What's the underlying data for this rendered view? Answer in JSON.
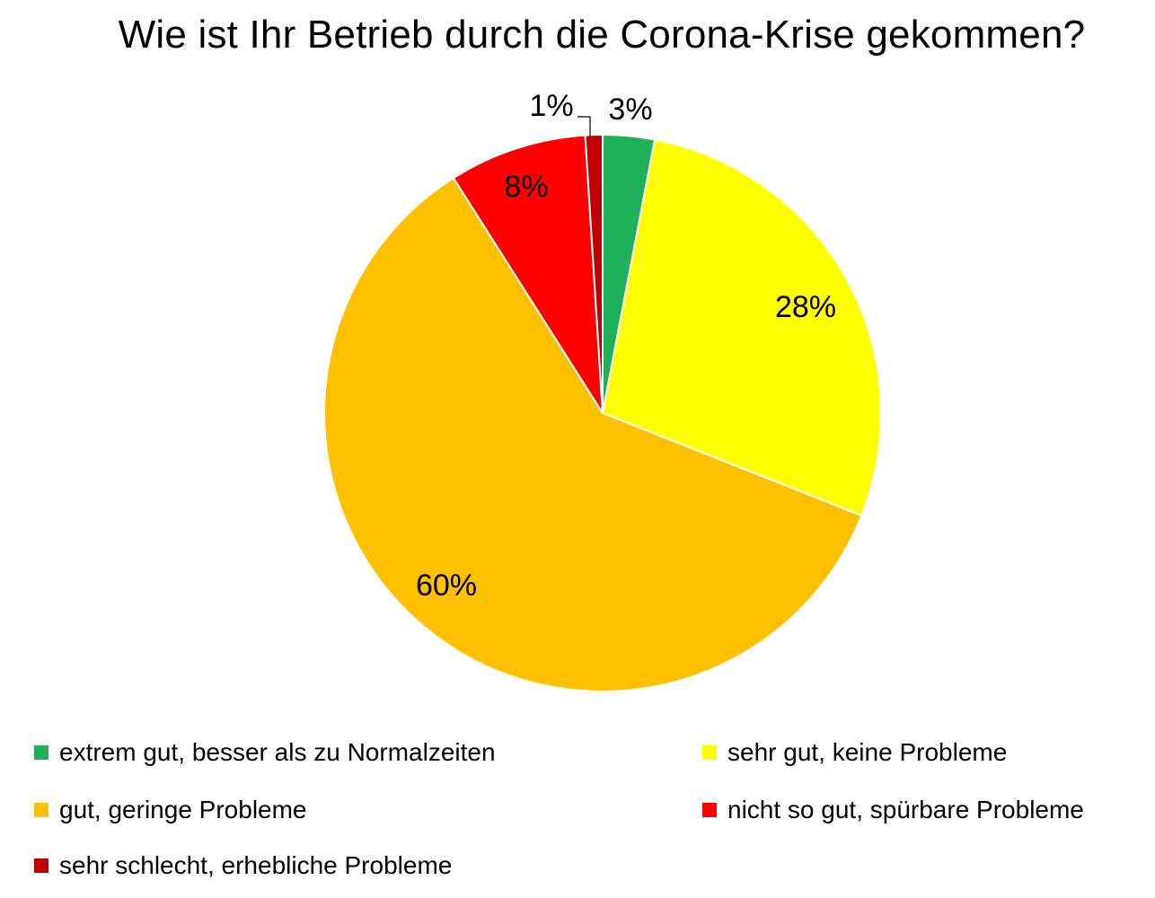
{
  "chart_data": {
    "type": "pie",
    "title": "Wie ist Ihr Betrieb durch die Corona-Krise gekommen?",
    "slices": [
      {
        "label": "extrem gut, besser als zu Normalzeiten",
        "value": 3,
        "value_label": "3%",
        "color": "#1fb05a"
      },
      {
        "label": "sehr gut, keine Probleme",
        "value": 28,
        "value_label": "28%",
        "color": "#ffff00"
      },
      {
        "label": "gut, geringe Probleme",
        "value": 60,
        "value_label": "60%",
        "color": "#ffc000"
      },
      {
        "label": "nicht so gut, spürbare Probleme",
        "value": 8,
        "value_label": "8%",
        "color": "#ff0000"
      },
      {
        "label": "sehr schlecht, erhebliche Probleme",
        "value": 1,
        "value_label": "1%",
        "color": "#c00000"
      }
    ],
    "start_angle": "12 o'clock",
    "direction": "clockwise",
    "legend_position": "bottom"
  }
}
